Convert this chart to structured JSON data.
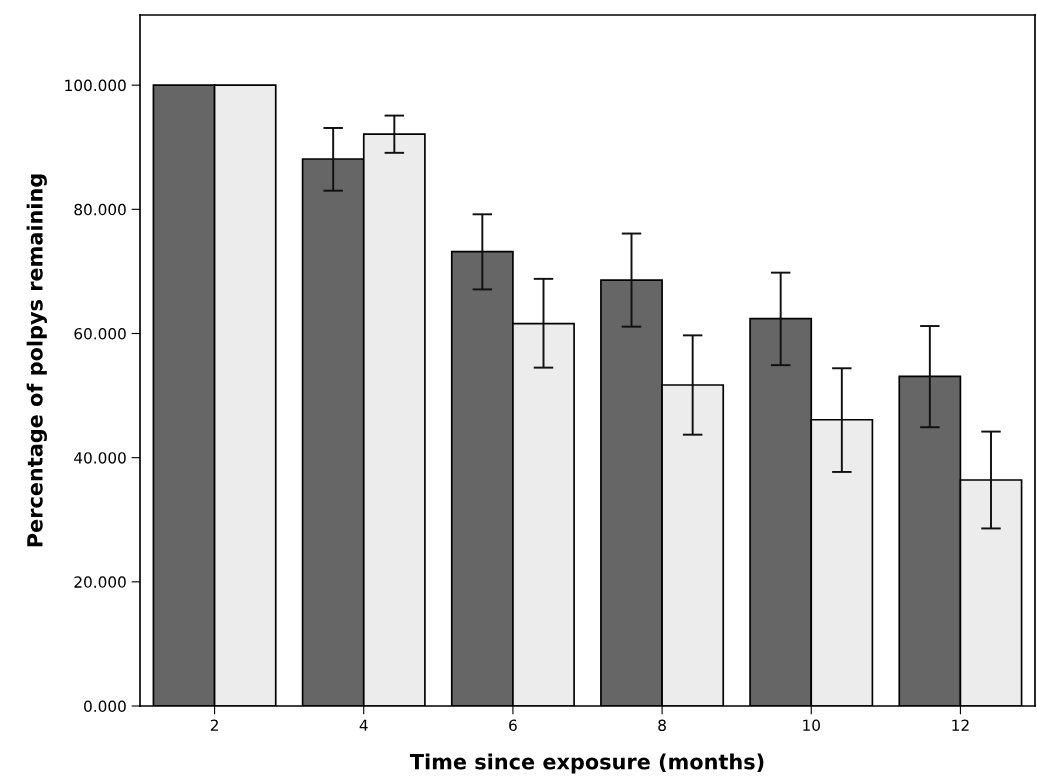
{
  "chart_data": {
    "type": "bar",
    "xlabel": "Time since exposure (months)",
    "ylabel": "Percentage of polpys remaining",
    "categories": [
      "2",
      "4",
      "6",
      "8",
      "10",
      "12"
    ],
    "series": [
      {
        "color": "#666666",
        "values": [
          100,
          88.1,
          73.2,
          68.6,
          62.4,
          53.1
        ],
        "errors": [
          null,
          [
            83.0,
            93.1
          ],
          [
            67.1,
            79.2
          ],
          [
            61.1,
            76.1
          ],
          [
            54.9,
            69.8
          ],
          [
            44.9,
            61.2
          ]
        ]
      },
      {
        "color": "#ececec",
        "values": [
          100,
          92.1,
          61.6,
          51.7,
          46.1,
          36.4
        ],
        "errors": [
          null,
          [
            89.1,
            95.1
          ],
          [
            54.5,
            68.8
          ],
          [
            43.7,
            59.7
          ],
          [
            37.7,
            54.4
          ],
          [
            28.6,
            44.2
          ]
        ]
      }
    ],
    "ylim": [
      0,
      111.3
    ],
    "yticks": [
      {
        "value": 0,
        "label": "0.000"
      },
      {
        "value": 20,
        "label": "20.000"
      },
      {
        "value": 40,
        "label": "40.000"
      },
      {
        "value": 60,
        "label": "60.000"
      },
      {
        "value": 80,
        "label": "80.000"
      },
      {
        "value": 100,
        "label": "100.000"
      }
    ],
    "grid": false
  }
}
